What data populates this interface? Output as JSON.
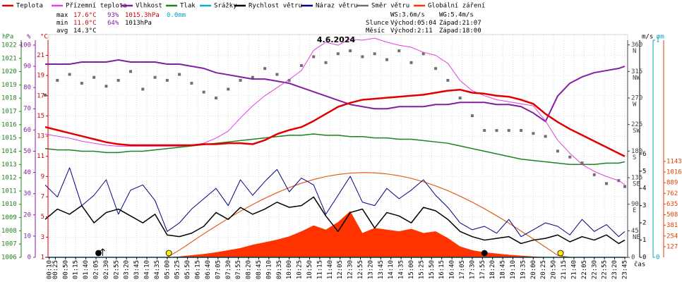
{
  "chart_data": {
    "type": "line",
    "title": "4.6.2024",
    "xlabel": "čas",
    "grid": true,
    "x": [
      0,
      30,
      60,
      90,
      120,
      150,
      180,
      210,
      240,
      270,
      300,
      330,
      360,
      390,
      420,
      450,
      480,
      510,
      540,
      570,
      600,
      630,
      660,
      690,
      720,
      750,
      780,
      810,
      840,
      870,
      900,
      930,
      960,
      990,
      1020,
      1050,
      1080,
      1110,
      1140,
      1170,
      1200,
      1230,
      1260,
      1290,
      1320,
      1350,
      1380,
      1410,
      1425
    ],
    "xlim": [
      0,
      1432
    ],
    "xticks": [
      {
        "value": 10,
        "label": "00:10"
      },
      {
        "value": 25,
        "label": "00:25"
      },
      {
        "value": 50,
        "label": "00:50"
      },
      {
        "value": 75,
        "label": "01:15"
      },
      {
        "value": 100,
        "label": "01:40"
      },
      {
        "value": 125,
        "label": "02:05"
      },
      {
        "value": 150,
        "label": "02:30"
      },
      {
        "value": 175,
        "label": "02:55"
      },
      {
        "value": 200,
        "label": "03:20"
      },
      {
        "value": 225,
        "label": "03:45"
      },
      {
        "value": 250,
        "label": "04:10"
      },
      {
        "value": 275,
        "label": "04:35"
      },
      {
        "value": 300,
        "label": "05:00"
      },
      {
        "value": 325,
        "label": "05:25"
      },
      {
        "value": 350,
        "label": "05:50"
      },
      {
        "value": 375,
        "label": "06:15"
      },
      {
        "value": 400,
        "label": "06:40"
      },
      {
        "value": 425,
        "label": "07:05"
      },
      {
        "value": 450,
        "label": "07:30"
      },
      {
        "value": 475,
        "label": "07:55"
      },
      {
        "value": 500,
        "label": "08:20"
      },
      {
        "value": 525,
        "label": "08:45"
      },
      {
        "value": 550,
        "label": "09:10"
      },
      {
        "value": 575,
        "label": "09:35"
      },
      {
        "value": 600,
        "label": "10:00"
      },
      {
        "value": 625,
        "label": "10:25"
      },
      {
        "value": 650,
        "label": "10:50"
      },
      {
        "value": 675,
        "label": "11:15"
      },
      {
        "value": 700,
        "label": "11:40"
      },
      {
        "value": 725,
        "label": "12:05"
      },
      {
        "value": 750,
        "label": "12:30"
      },
      {
        "value": 775,
        "label": "12:55"
      },
      {
        "value": 800,
        "label": "13:20"
      },
      {
        "value": 825,
        "label": "13:45"
      },
      {
        "value": 850,
        "label": "14:10"
      },
      {
        "value": 875,
        "label": "14:35"
      },
      {
        "value": 900,
        "label": "15:00"
      },
      {
        "value": 925,
        "label": "15:25"
      },
      {
        "value": 950,
        "label": "15:50"
      },
      {
        "value": 975,
        "label": "16:15"
      },
      {
        "value": 1000,
        "label": "16:40"
      },
      {
        "value": 1025,
        "label": "17:05"
      },
      {
        "value": 1050,
        "label": "17:30"
      },
      {
        "value": 1075,
        "label": "17:55"
      },
      {
        "value": 1100,
        "label": "18:20"
      },
      {
        "value": 1125,
        "label": "18:45"
      },
      {
        "value": 1150,
        "label": "19:10"
      },
      {
        "value": 1175,
        "label": "19:35"
      },
      {
        "value": 1200,
        "label": "20:00"
      },
      {
        "value": 1225,
        "label": "20:25"
      },
      {
        "value": 1250,
        "label": "20:50"
      },
      {
        "value": 1275,
        "label": "21:15"
      },
      {
        "value": 1300,
        "label": "21:40"
      },
      {
        "value": 1325,
        "label": "22:05"
      },
      {
        "value": 1350,
        "label": "22:30"
      },
      {
        "value": 1375,
        "label": "22:55"
      },
      {
        "value": 1400,
        "label": "23:20"
      },
      {
        "value": 1425,
        "label": "23:45"
      }
    ],
    "axes": {
      "hpa": {
        "label": "hPa",
        "color": "#208020",
        "lim": [
          1006,
          1022.37
        ],
        "ticks": [
          1006,
          1007,
          1008,
          1009,
          1010,
          1011,
          1012,
          1013,
          1014,
          1015,
          1016,
          1017,
          1018,
          1019,
          1020,
          1021,
          1022
        ]
      },
      "pct": {
        "label": "%",
        "color": "#8020a0",
        "lim": [
          0,
          102.3
        ],
        "ticks": [
          0,
          10,
          20,
          30,
          40,
          50,
          60,
          70,
          80,
          90,
          100
        ]
      },
      "temp": {
        "label": "°C",
        "color": "#d00000",
        "lim": [
          1,
          22.5
        ],
        "ticks": [
          1,
          3,
          5,
          7,
          9,
          11,
          13,
          15,
          17,
          19,
          21
        ]
      },
      "dir": {
        "color": "#404040",
        "lim": [
          0,
          368
        ],
        "ticks": [
          0,
          45,
          90,
          135,
          180,
          225,
          270,
          315,
          360
        ],
        "compass": [
          null,
          "NE",
          "E",
          "SE",
          "S",
          "SW",
          "W",
          "NW",
          "N"
        ]
      },
      "wind": {
        "label": "m/s",
        "color": "#000000",
        "lim": [
          0,
          12.6
        ],
        "ticks": [
          0,
          1,
          2,
          3,
          4,
          5,
          6
        ]
      },
      "mm": {
        "label": "mm",
        "color": "#00a0c0",
        "lim": [
          0,
          1
        ],
        "ticks": [
          0,
          1
        ]
      },
      "rad": {
        "color": "#e04000",
        "lim": [
          0,
          2587
        ],
        "ticks": [
          127,
          254,
          381,
          508,
          635,
          762,
          889,
          1016,
          1143
        ]
      }
    },
    "series": [
      {
        "name": "Teplota",
        "color": "#e00000",
        "axis": "temp",
        "values": [
          13.9,
          13.6,
          13.3,
          13.0,
          12.7,
          12.4,
          12.2,
          12.1,
          12.1,
          12.1,
          12.1,
          12.1,
          12.1,
          12.2,
          12.2,
          12.3,
          12.3,
          12.2,
          12.6,
          13.2,
          13.6,
          13.9,
          14.5,
          15.2,
          15.9,
          16.3,
          16.6,
          16.7,
          16.8,
          16.9,
          17.0,
          17.1,
          17.3,
          17.5,
          17.6,
          17.3,
          17.2,
          17.0,
          16.9,
          16.6,
          16.2,
          15.2,
          14.4,
          13.7,
          13.1,
          12.5,
          11.9,
          11.3,
          11.0
        ]
      },
      {
        "name": "Přízemní teplota",
        "color": "#e040e0",
        "axis": "temp",
        "values": [
          13.2,
          13.0,
          12.8,
          12.5,
          12.3,
          12.1,
          12.0,
          12.0,
          12.0,
          12.0,
          12.0,
          12.0,
          12.1,
          12.3,
          12.8,
          13.5,
          14.8,
          16.0,
          17.0,
          17.8,
          18.6,
          19.5,
          21.5,
          22.3,
          22.0,
          22.6,
          22.5,
          22.7,
          22.3,
          22.0,
          21.8,
          21.3,
          21.0,
          20.2,
          18.5,
          17.5,
          17.0,
          16.6,
          16.4,
          16.2,
          16.0,
          14.5,
          12.6,
          11.3,
          10.2,
          9.5,
          9.0,
          8.6,
          8.2
        ]
      },
      {
        "name": "Vlhkost",
        "color": "#8020a0",
        "axis": "pct",
        "values": [
          91,
          91,
          91,
          92,
          92,
          92,
          93,
          92,
          92,
          92,
          91,
          91,
          90,
          89,
          87,
          86,
          85,
          84,
          84,
          83,
          82,
          80,
          78,
          76,
          74,
          72,
          71,
          70,
          70,
          71,
          71,
          71,
          72,
          72,
          73,
          73,
          73,
          72,
          72,
          71,
          68,
          64,
          76,
          82,
          85,
          87,
          88,
          89,
          90
        ]
      },
      {
        "name": "Tlak",
        "color": "#208020",
        "axis": "hpa",
        "values": [
          1014.2,
          1014.1,
          1014.1,
          1014.0,
          1014.0,
          1013.9,
          1013.9,
          1014.0,
          1014.0,
          1014.1,
          1014.2,
          1014.3,
          1014.4,
          1014.5,
          1014.6,
          1014.7,
          1014.8,
          1014.9,
          1015.0,
          1015.1,
          1015.2,
          1015.2,
          1015.3,
          1015.2,
          1015.2,
          1015.1,
          1015.1,
          1015.0,
          1015.0,
          1014.9,
          1014.9,
          1014.8,
          1014.7,
          1014.6,
          1014.4,
          1014.2,
          1014.0,
          1013.8,
          1013.6,
          1013.4,
          1013.3,
          1013.2,
          1013.1,
          1013.0,
          1013.0,
          1013.0,
          1013.1,
          1013.1,
          1013.2
        ]
      },
      {
        "name": "Srážky",
        "color": "#00b0d0",
        "axis": "mm",
        "values": [
          0,
          0,
          0,
          0,
          0,
          0,
          0,
          0,
          0,
          0,
          0,
          0,
          0,
          0,
          0,
          0,
          0,
          0,
          0,
          0,
          0,
          0,
          0,
          0,
          0,
          0,
          0,
          0,
          0,
          0,
          0,
          0,
          0,
          0,
          0,
          0,
          0,
          0,
          0,
          0,
          0,
          0,
          0,
          0,
          0,
          0,
          0,
          0,
          0
        ]
      },
      {
        "name": "Rychlost větru",
        "color": "#000000",
        "axis": "wind",
        "values": [
          2.2,
          2.8,
          2.5,
          3.0,
          2.0,
          2.6,
          2.8,
          2.4,
          2.0,
          2.5,
          1.3,
          1.2,
          1.4,
          1.8,
          2.6,
          2.2,
          2.9,
          2.5,
          2.8,
          3.2,
          2.9,
          3.0,
          3.5,
          2.4,
          1.5,
          2.6,
          2.8,
          1.7,
          2.6,
          2.4,
          2.0,
          2.9,
          2.7,
          2.2,
          1.5,
          1.2,
          1.0,
          1.1,
          1.2,
          0.8,
          1.0,
          1.1,
          1.3,
          0.9,
          1.2,
          1.0,
          1.3,
          0.8,
          1.0
        ]
      },
      {
        "name": "Náraz větru",
        "color": "#000080",
        "axis": "wind",
        "values": [
          4.2,
          3.5,
          5.2,
          3.0,
          3.6,
          4.5,
          2.5,
          3.9,
          4.2,
          3.3,
          1.5,
          2.0,
          2.8,
          3.4,
          4.0,
          3.0,
          4.5,
          3.6,
          4.4,
          5.1,
          3.8,
          4.6,
          4.2,
          2.5,
          3.6,
          4.7,
          3.2,
          3.0,
          4.0,
          3.4,
          3.9,
          4.5,
          3.6,
          2.9,
          2.0,
          1.6,
          1.8,
          1.4,
          2.2,
          1.2,
          1.6,
          2.0,
          1.8,
          1.3,
          2.2,
          1.5,
          1.9,
          1.2,
          1.5
        ]
      },
      {
        "name": "Směr větru",
        "color": "#707070",
        "axis": "dir",
        "style": "points",
        "values": [
          275,
          300,
          310,
          295,
          305,
          290,
          300,
          315,
          285,
          305,
          300,
          310,
          295,
          280,
          270,
          285,
          300,
          305,
          320,
          310,
          300,
          325,
          340,
          330,
          345,
          350,
          340,
          345,
          335,
          350,
          330,
          345,
          320,
          300,
          270,
          240,
          215,
          215,
          215,
          215,
          210,
          205,
          180,
          170,
          160,
          140,
          125,
          130,
          120
        ]
      },
      {
        "name": "Globální záření",
        "color": "#ff3300",
        "axis": "rad",
        "style": "area",
        "values": [
          0,
          0,
          0,
          0,
          0,
          0,
          0,
          0,
          0,
          0,
          0,
          10,
          25,
          40,
          60,
          85,
          110,
          150,
          180,
          210,
          250,
          310,
          380,
          330,
          420,
          550,
          290,
          350,
          330,
          310,
          340,
          290,
          310,
          230,
          130,
          85,
          60,
          45,
          30,
          20,
          10,
          4,
          0,
          0,
          0,
          0,
          0,
          0,
          0
        ]
      },
      {
        "color": "#e06020",
        "axis": "rad",
        "values": [
          null,
          null,
          null,
          null,
          null,
          null,
          null,
          null,
          null,
          null,
          0,
          86,
          183,
          280,
          373,
          463,
          549,
          629,
          703,
          770,
          831,
          883,
          927,
          962,
          987,
          1003,
          1010,
          1007,
          994,
          972,
          941,
          900,
          851,
          794,
          729,
          657,
          579,
          495,
          407,
          313,
          218,
          122,
          23,
          0,
          null,
          null,
          null,
          null,
          null
        ]
      }
    ],
    "info": {
      "stats": [
        {
          "label": "max",
          "temp": "17.6°C",
          "hum": "93%",
          "press": "1015.3hPa",
          "rain": "0.0mm"
        },
        {
          "label": "min",
          "temp": "11.0°C",
          "hum": "64%",
          "press": "1013hPa"
        },
        {
          "label": "avg",
          "temp": "14.3°C"
        }
      ],
      "ws": "WS:3.6m/s",
      "wg": "WG:5.4m/s",
      "rise_label": "Východ:",
      "set_label": "Západ:",
      "sun": {
        "label": "Slunce",
        "rise": "05:04",
        "set": "21:07"
      },
      "moon": {
        "label": "Měsíc",
        "rise": "2:11",
        "set": "18:00"
      }
    }
  }
}
